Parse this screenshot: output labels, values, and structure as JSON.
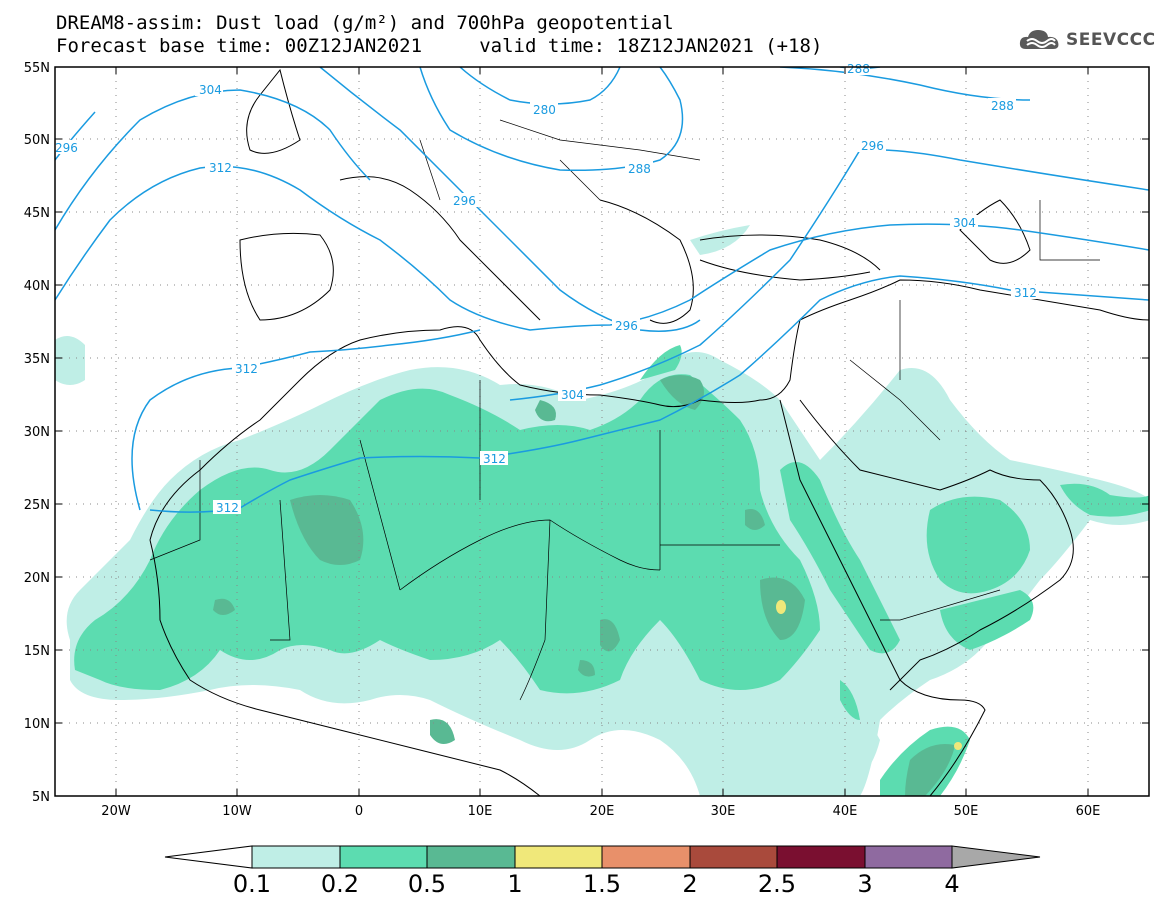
{
  "header": {
    "line1": "DREAM8-assim: Dust load (g/m²) and 700hPa geopotential",
    "line2": "Forecast base time: 00Z12JAN2021     valid time: 18Z12JAN2021 (+18)"
  },
  "logo": {
    "text": "SEEVCCC",
    "icon": "cloud-logo-icon"
  },
  "colors": {
    "contour": "#1a9be0",
    "coast": "#000000",
    "levels": [
      "#bfeee6",
      "#5cdcb0",
      "#59b993",
      "#f0e87a",
      "#e8906a",
      "#a94a3c",
      "#7a0f30",
      "#8f6aa0",
      "#a8a8a8"
    ]
  },
  "lat_labels": [
    "55N",
    "50N",
    "45N",
    "40N",
    "35N",
    "30N",
    "25N",
    "20N",
    "15N",
    "10N",
    "5N"
  ],
  "lon_labels": [
    "20W",
    "10W",
    "0",
    "10E",
    "20E",
    "30E",
    "40E",
    "50E",
    "60E"
  ],
  "colorbar": {
    "labels": [
      "0.1",
      "0.2",
      "0.5",
      "1",
      "1.5",
      "2",
      "2.5",
      "3",
      "4"
    ]
  },
  "contour_labels": [
    "304",
    "312",
    "296",
    "280",
    "288",
    "296",
    "296",
    "288",
    "304",
    "312",
    "296",
    "304",
    "312",
    "312",
    "312",
    "288"
  ]
}
